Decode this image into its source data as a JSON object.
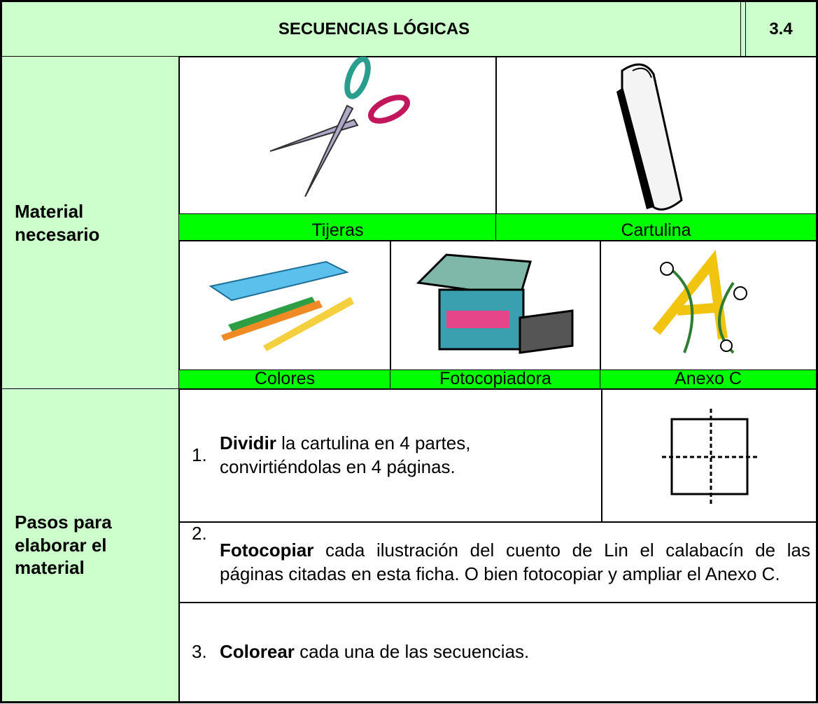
{
  "header": {
    "title": "SECUENCIAS LÓGICAS",
    "code": "3.4"
  },
  "materials": {
    "label": "Material necesario",
    "items": [
      "Tijeras",
      "Cartulina",
      "Colores",
      "Fotocopiadora",
      "Anexo C"
    ]
  },
  "steps": {
    "label": "Pasos para elaborar el material",
    "items": [
      {
        "number": "1.",
        "action": "Dividir",
        "text": "la cartulina en 4 partes, convirtiéndolas en 4 páginas."
      },
      {
        "number": "2.",
        "action": "Fotocopiar",
        "text": "cada ilustración del cuento de Lin el calabacín de las páginas citadas en esta ficha. O bien fotocopiar y ampliar el Anexo C."
      },
      {
        "number": "3.",
        "action": "Colorear",
        "text": "cada una de las secuencias."
      }
    ]
  }
}
